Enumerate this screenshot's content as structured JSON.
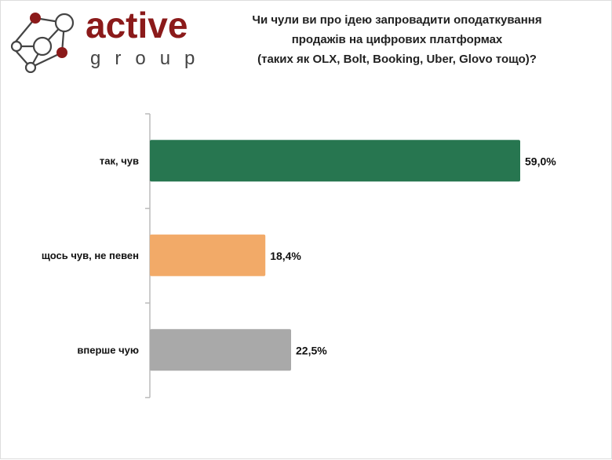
{
  "logo": {
    "word1": "active",
    "word2": "group",
    "brand_color": "#8b1a1a",
    "gray_color": "#444444"
  },
  "chart_data": {
    "type": "bar",
    "orientation": "horizontal",
    "title_lines": [
      "Чи чули ви про ідею запровадити оподаткування",
      "продажів на цифрових платформах",
      "(таких як OLX, Bolt, Booking, Uber, Glovo тощо)?"
    ],
    "categories": [
      "так, чув",
      "щось чув, не певен",
      "вперше чую"
    ],
    "values": [
      59.0,
      18.4,
      22.5
    ],
    "data_labels": [
      "59,0%",
      "18,4%",
      "22,5%"
    ],
    "colors": [
      "#277650",
      "#f2aa68",
      "#a9a9a9"
    ],
    "unit": "%",
    "xlim": [
      0,
      60
    ],
    "grid": false,
    "legend": "none"
  }
}
